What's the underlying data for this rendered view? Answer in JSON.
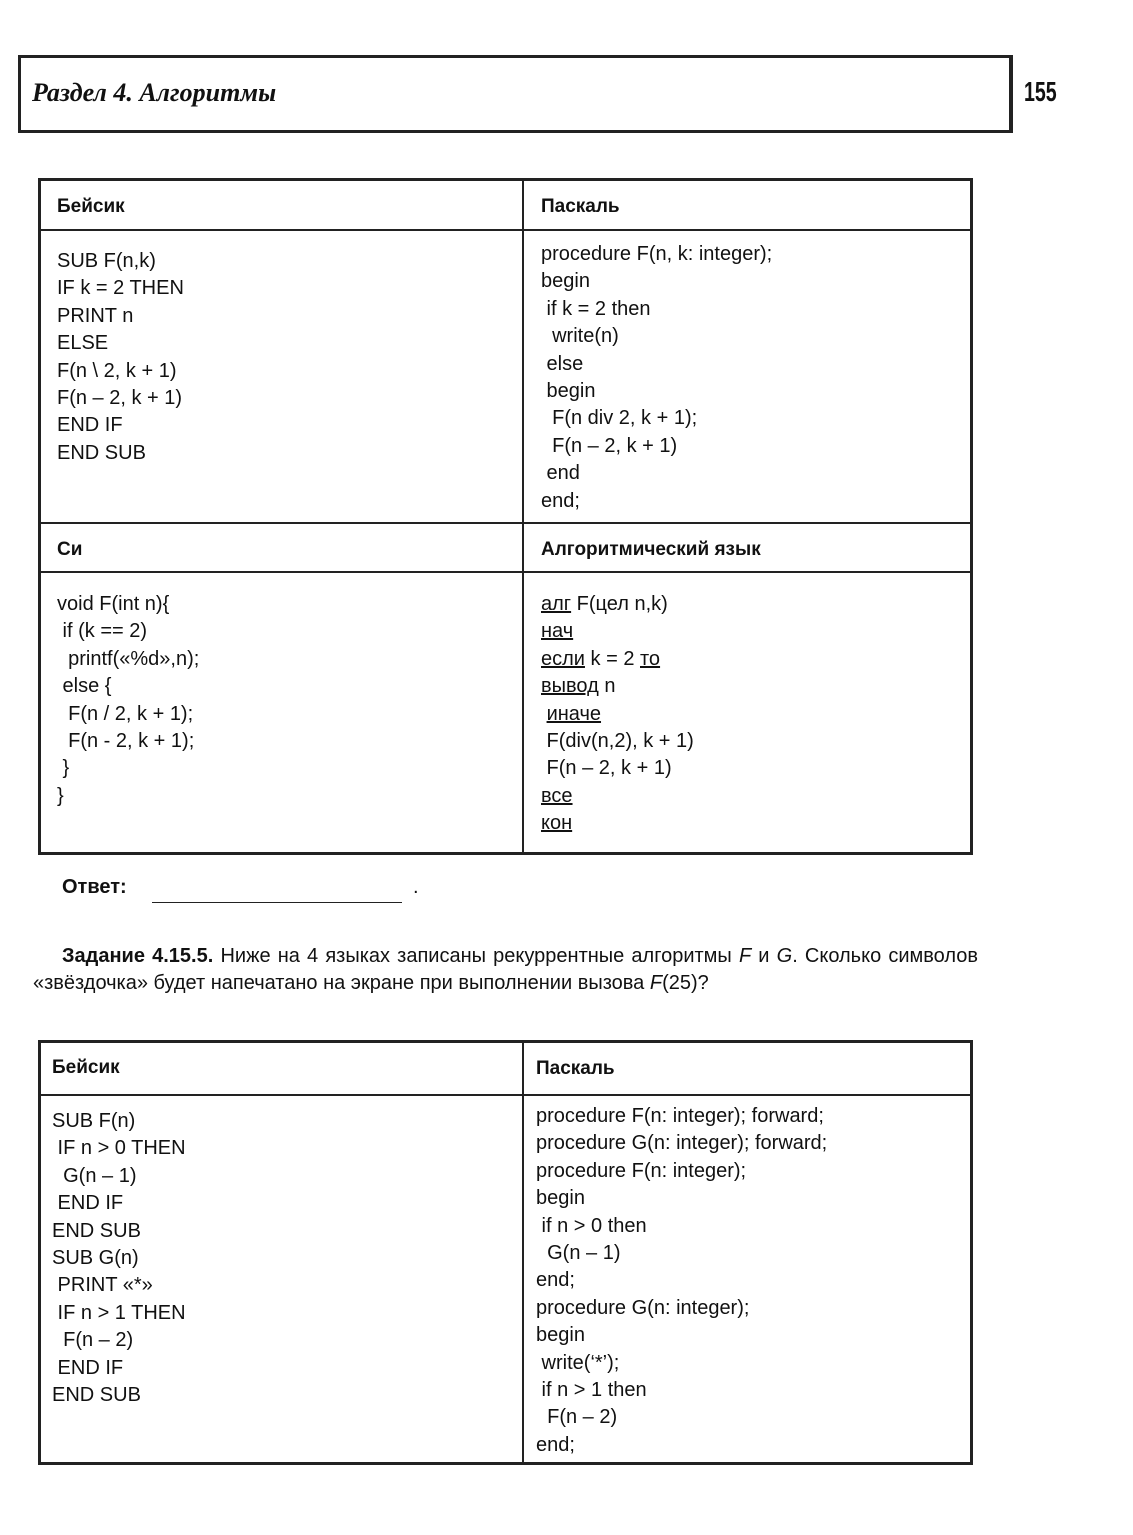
{
  "header": {
    "title": "Раздел 4. Алгоритмы",
    "page_number": "155"
  },
  "table1": {
    "cells": [
      {
        "heading": "Бейсик",
        "lines": [
          "SUB F(n,k)",
          "IF k = 2 THEN",
          "PRINT n",
          "ELSE",
          "F(n \\ 2, k + 1)",
          "F(n – 2, k + 1)",
          "END IF",
          "END SUB"
        ]
      },
      {
        "heading": "Паскаль",
        "lines": [
          "procedure F(n, k: integer);",
          "begin",
          " if k = 2 then",
          "  write(n)",
          " else",
          " begin",
          "  F(n div 2, k + 1);",
          "  F(n – 2, k + 1)",
          " end",
          "end;"
        ]
      },
      {
        "heading": "Си",
        "lines": [
          "void F(int n){",
          " if (k == 2)",
          "  printf(«%d»,n);",
          " else {",
          "  F(n / 2, k + 1);",
          "  F(n - 2, k + 1);",
          " }",
          "}"
        ]
      },
      {
        "heading": "Алгоритмический язык",
        "lines": [
          [
            {
              "u": "алг"
            },
            " F(цел n,k)"
          ],
          [
            {
              "u": "нач"
            }
          ],
          [
            {
              "u": "если"
            },
            " k = 2 ",
            {
              "u": "то"
            }
          ],
          [
            {
              "u": "вывод"
            },
            " n"
          ],
          [
            " ",
            {
              "u": "иначе"
            }
          ],
          [
            " F(div(n,2), k + 1)"
          ],
          [
            " F(n – 2, k + 1)"
          ],
          [
            {
              "u": "все"
            }
          ],
          [
            {
              "u": "кон"
            }
          ]
        ]
      }
    ]
  },
  "answer": {
    "label": "Ответ:",
    "end": "."
  },
  "task": {
    "parts": [
      {
        "b": "Задание 4.15.5."
      },
      " Ниже на 4 языках записаны рекуррентные алгоритмы ",
      {
        "i": "F"
      },
      " и ",
      {
        "i": "G"
      },
      ". Сколько символов «звёздочка» будет напечатано на экране при выполнении вызова ",
      {
        "i": "F"
      },
      "(25)?"
    ]
  },
  "table2": {
    "cells": [
      {
        "heading": "Бейсик",
        "lines": [
          "SUB F(n)",
          " IF n > 0 THEN",
          "  G(n – 1)",
          " END IF",
          "END SUB",
          "SUB G(n)",
          " PRINT «*»",
          " IF n > 1 THEN",
          "  F(n – 2)",
          " END IF",
          "END SUB"
        ]
      },
      {
        "heading": "Паскаль",
        "lines": [
          "procedure F(n: integer); forward;",
          "procedure G(n: integer); forward;",
          "procedure F(n: integer);",
          "begin",
          " if n > 0 then",
          "  G(n – 1)",
          "end;",
          "procedure G(n: integer);",
          "begin",
          " write(‘*’);",
          " if n > 1 then",
          "  F(n – 2)",
          "end;"
        ]
      }
    ]
  }
}
